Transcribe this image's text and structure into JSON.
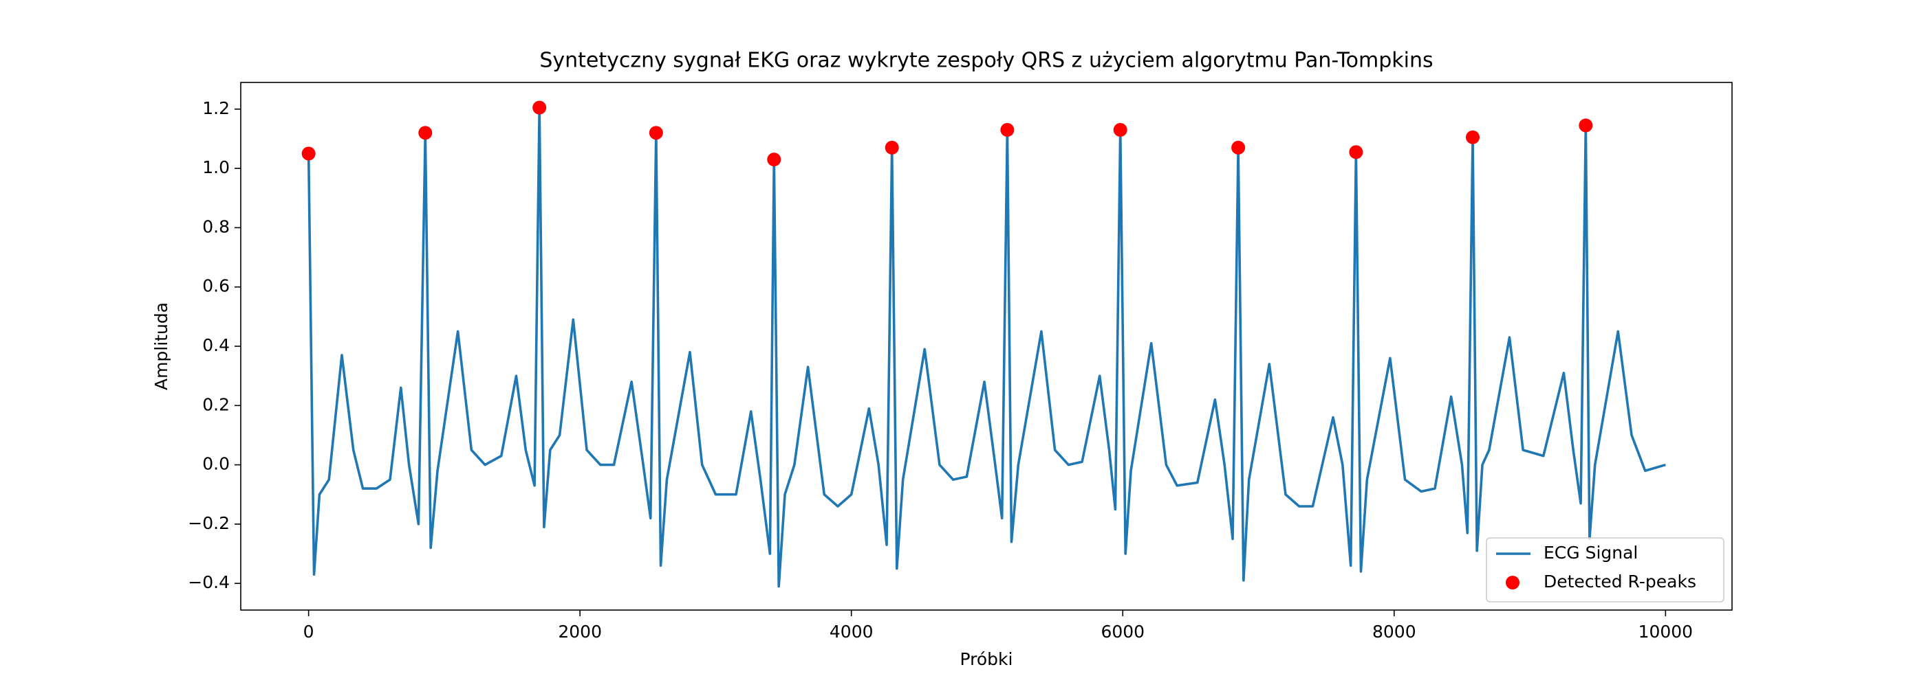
{
  "chart_data": {
    "type": "line",
    "title": "Syntetyczny sygnał EKG oraz wykryte zespoły QRS z użyciem algorytmu Pan-Tompkins",
    "xlabel": "Próbki",
    "ylabel": "Amplituda",
    "xlim": [
      -500,
      10490
    ],
    "ylim": [
      -0.49,
      1.29
    ],
    "xticks": [
      0,
      2000,
      4000,
      6000,
      8000,
      10000
    ],
    "yticks": [
      {
        "value": -0.4,
        "label": "−0.4"
      },
      {
        "value": -0.2,
        "label": "−0.2"
      },
      {
        "value": 0,
        "label": "0.0"
      },
      0.2,
      0.4,
      0.6,
      0.8,
      {
        "value": 1,
        "label": "1.0"
      },
      1.2
    ],
    "legend": "lower right",
    "series": [
      {
        "name": "ECG Signal",
        "color": "#1f77b4",
        "style": "line",
        "x": [
          0,
          40,
          80,
          150,
          245,
          330,
          400,
          500,
          600,
          680,
          740,
          810,
          860,
          900,
          950,
          1100,
          1200,
          1300,
          1420,
          1530,
          1600,
          1665,
          1701,
          1735,
          1780,
          1850,
          1950,
          2050,
          2150,
          2250,
          2380,
          2460,
          2520,
          2561,
          2595,
          2640,
          2810,
          2900,
          3000,
          3150,
          3260,
          3330,
          3400,
          3430,
          3465,
          3510,
          3580,
          3680,
          3800,
          3900,
          4000,
          4130,
          4200,
          4260,
          4299,
          4335,
          4380,
          4540,
          4650,
          4750,
          4850,
          4980,
          5060,
          5110,
          5149,
          5180,
          5230,
          5400,
          5500,
          5600,
          5700,
          5830,
          5900,
          5945,
          5982,
          6020,
          6060,
          6210,
          6320,
          6400,
          6550,
          6680,
          6750,
          6810,
          6851,
          6890,
          6930,
          7080,
          7200,
          7300,
          7400,
          7550,
          7620,
          7680,
          7719,
          7755,
          7800,
          7970,
          8080,
          8200,
          8300,
          8420,
          8500,
          8540,
          8579,
          8610,
          8650,
          8700,
          8850,
          8950,
          9100,
          9250,
          9320,
          9375,
          9412,
          9440,
          9480,
          9650,
          9750,
          9850,
          10000
        ],
        "values": [
          1.05,
          -0.37,
          -0.1,
          -0.05,
          0.37,
          0.05,
          -0.08,
          -0.08,
          -0.05,
          0.26,
          0.0,
          -0.2,
          1.12,
          -0.28,
          -0.02,
          0.45,
          0.05,
          0.0,
          0.03,
          0.3,
          0.05,
          -0.07,
          1.205,
          -0.21,
          0.05,
          0.1,
          0.49,
          0.05,
          0.0,
          0.0,
          0.28,
          0.02,
          -0.18,
          1.12,
          -0.34,
          -0.05,
          0.38,
          0.0,
          -0.1,
          -0.1,
          0.18,
          -0.05,
          -0.3,
          1.03,
          -0.41,
          -0.1,
          0.0,
          0.33,
          -0.1,
          -0.14,
          -0.1,
          0.19,
          0.0,
          -0.27,
          1.07,
          -0.35,
          -0.05,
          0.39,
          0.0,
          -0.05,
          -0.04,
          0.28,
          0.0,
          -0.18,
          1.13,
          -0.26,
          0.0,
          0.45,
          0.05,
          0.0,
          0.01,
          0.3,
          0.05,
          -0.15,
          1.13,
          -0.3,
          -0.02,
          0.41,
          0.0,
          -0.07,
          -0.06,
          0.22,
          0.0,
          -0.25,
          1.07,
          -0.39,
          -0.05,
          0.34,
          -0.1,
          -0.14,
          -0.14,
          0.16,
          0.0,
          -0.34,
          1.055,
          -0.36,
          -0.05,
          0.36,
          -0.05,
          -0.09,
          -0.08,
          0.23,
          0.0,
          -0.23,
          1.105,
          -0.29,
          0.0,
          0.05,
          0.43,
          0.05,
          0.03,
          0.31,
          0.05,
          -0.13,
          1.145,
          -0.25,
          0.0,
          0.45,
          0.1,
          -0.02,
          0.0
        ]
      },
      {
        "name": "Detected R-peaks",
        "color": "#ff0000",
        "style": "marker",
        "x": [
          0,
          860,
          1701,
          2561,
          3430,
          4299,
          5149,
          5982,
          6851,
          7719,
          8579,
          9412
        ],
        "values": [
          1.05,
          1.12,
          1.205,
          1.12,
          1.03,
          1.07,
          1.13,
          1.13,
          1.07,
          1.055,
          1.105,
          1.145
        ]
      }
    ]
  }
}
